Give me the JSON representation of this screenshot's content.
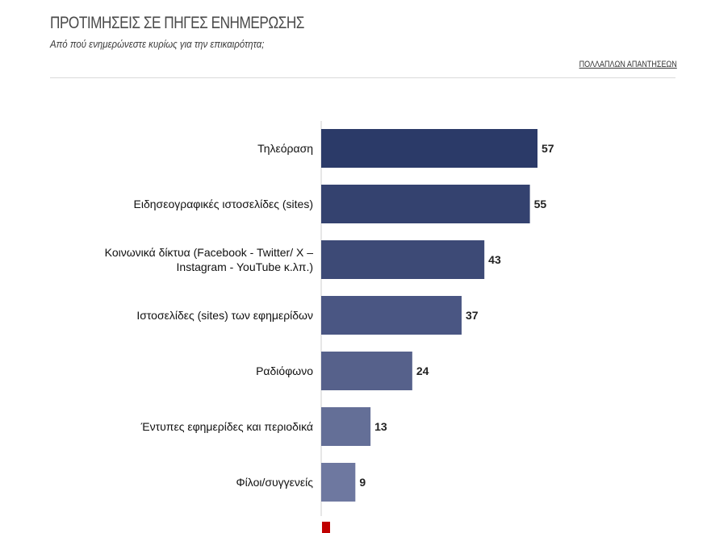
{
  "header": {
    "title": "ΠΡΟΤΙΜΗΣΕΙΣ ΣΕ ΠΗΓΕΣ ΕΝΗΜΕΡΩΣΗΣ",
    "subtitle": "Από πού ενημερώνεστε κυρίως για την επικαιρότητα;",
    "note": "ΠΟΛΛΑΠΛΩΝ ΑΠΑΝΤΗΣΕΩΝ"
  },
  "chart_data": {
    "type": "bar",
    "orientation": "horizontal",
    "categories": [
      "Τηλεόραση",
      "Ειδησεογραφικές ιστοσελίδες (sites)",
      "Κοινωνικά δίκτυα (Facebook - Twitter/ X – Instagram - YouTube κ.λπ.)",
      "Ιστοσελίδες (sites) των εφημερίδων",
      "Ραδιόφωνο",
      "Έντυπες εφημερίδες και περιοδικά",
      "Φίλοι/συγγενείς"
    ],
    "category_lines": [
      [
        "Τηλεόραση"
      ],
      [
        "Ειδησεογραφικές ιστοσελίδες (sites)"
      ],
      [
        "Κοινωνικά δίκτυα (Facebook - Twitter/ X –",
        "Instagram - YouTube κ.λπ.)"
      ],
      [
        "Ιστοσελίδες (sites) των εφημερίδων"
      ],
      [
        "Ραδιόφωνο"
      ],
      [
        "Έντυπες εφημερίδες και περιοδικά"
      ],
      [
        "Φίλοι/συγγενείς"
      ]
    ],
    "values": [
      57,
      55,
      43,
      37,
      24,
      13,
      9
    ],
    "bar_colors": [
      "#2b3a68",
      "#34426f",
      "#3d4a76",
      "#4a5683",
      "#56618b",
      "#646f97",
      "#6e78a0"
    ],
    "xlim": [
      0,
      60
    ],
    "grid": false,
    "legend": "none"
  }
}
